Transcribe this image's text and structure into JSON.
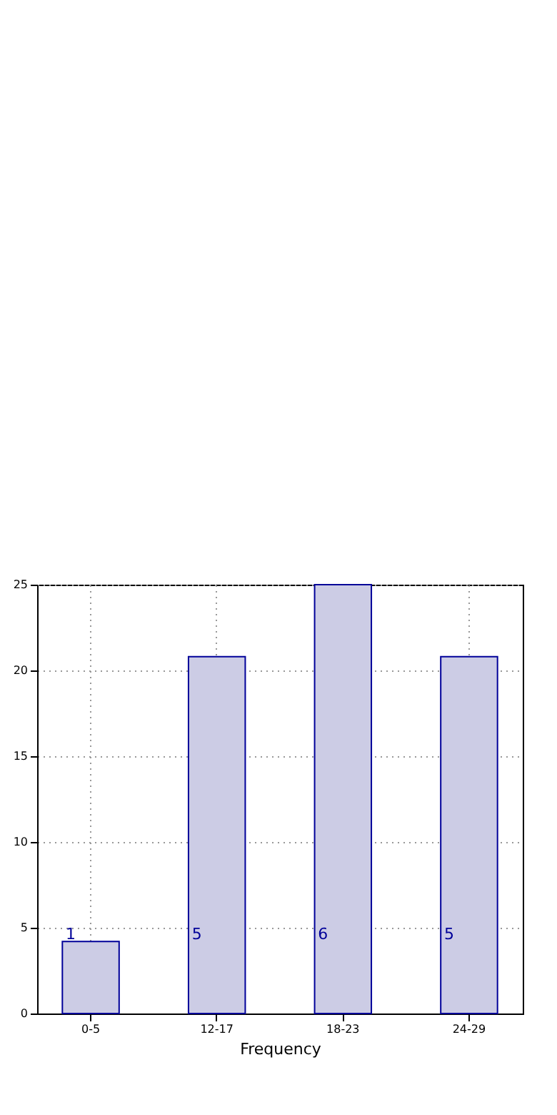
{
  "chart_data": {
    "type": "bar",
    "xlabel": "Frequency",
    "categories": [
      "0-5",
      "12-17",
      "18-23",
      "24-29"
    ],
    "values": [
      4.2,
      20.8,
      25,
      20.8
    ],
    "annotations": [
      "1",
      "5",
      "6",
      "5"
    ],
    "color": "#cccce5",
    "ylim": [
      0,
      25
    ],
    "yticks": [
      0,
      5,
      10,
      15,
      20,
      25
    ],
    "grid": true
  }
}
